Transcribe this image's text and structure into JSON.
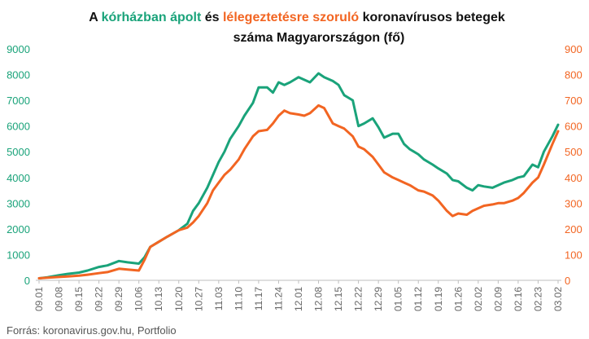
{
  "chart_data": {
    "type": "line",
    "title": {
      "line1": [
        {
          "text": "A ",
          "color": "#111111"
        },
        {
          "text": "kórházban ápolt",
          "color": "#1aa37a"
        },
        {
          "text": " és ",
          "color": "#111111"
        },
        {
          "text": "lélegeztetésre szoruló",
          "color": "#f26522"
        },
        {
          "text": " koronavírusos betegek",
          "color": "#111111"
        }
      ],
      "line2": "száma Magyarországon  (fő)"
    },
    "source": "Forrás: koronavirus.gov.hu, Portfolio",
    "x_tick_labels": [
      "09.01",
      "09.08",
      "09.15",
      "09.22",
      "09.29",
      "10.06",
      "10.13",
      "10.20",
      "10.27",
      "11.03",
      "11.10",
      "11.17",
      "11.24",
      "12.01",
      "12.08",
      "12.15",
      "12.22",
      "12.29",
      "01.05",
      "01.12",
      "01.19",
      "01.26",
      "02.02",
      "02.09",
      "02.16",
      "02.23",
      "03.02"
    ],
    "y_left": {
      "min": 0,
      "max": 9000,
      "ticks": [
        0,
        1000,
        2000,
        3000,
        4000,
        5000,
        6000,
        7000,
        8000,
        9000
      ],
      "color": "#1aa37a"
    },
    "y_right": {
      "min": 0,
      "max": 900,
      "ticks": [
        0,
        100,
        200,
        300,
        400,
        500,
        600,
        700,
        800,
        900
      ],
      "color": "#f26522"
    },
    "grid": false,
    "series": [
      {
        "name": "kórházban ápolt",
        "axis": "left",
        "color": "#1aa37a",
        "points": [
          [
            "09.01",
            80
          ],
          [
            "09.04",
            120
          ],
          [
            "09.08",
            200
          ],
          [
            "09.11",
            250
          ],
          [
            "09.15",
            300
          ],
          [
            "09.18",
            380
          ],
          [
            "09.22",
            520
          ],
          [
            "09.25",
            580
          ],
          [
            "09.29",
            750
          ],
          [
            "10.02",
            700
          ],
          [
            "10.06",
            650
          ],
          [
            "10.08",
            900
          ],
          [
            "10.10",
            1300
          ],
          [
            "10.13",
            1500
          ],
          [
            "10.16",
            1700
          ],
          [
            "10.20",
            1950
          ],
          [
            "10.23",
            2200
          ],
          [
            "10.25",
            2700
          ],
          [
            "10.27",
            3000
          ],
          [
            "10.30",
            3600
          ],
          [
            "11.01",
            4100
          ],
          [
            "11.03",
            4600
          ],
          [
            "11.05",
            5000
          ],
          [
            "11.07",
            5500
          ],
          [
            "11.10",
            6000
          ],
          [
            "11.12",
            6400
          ],
          [
            "11.15",
            6900
          ],
          [
            "11.17",
            7500
          ],
          [
            "11.20",
            7500
          ],
          [
            "11.22",
            7300
          ],
          [
            "11.24",
            7700
          ],
          [
            "11.26",
            7600
          ],
          [
            "11.28",
            7700
          ],
          [
            "12.01",
            7900
          ],
          [
            "12.03",
            7800
          ],
          [
            "12.05",
            7700
          ],
          [
            "12.08",
            8050
          ],
          [
            "12.10",
            7900
          ],
          [
            "12.13",
            7750
          ],
          [
            "12.15",
            7600
          ],
          [
            "12.17",
            7200
          ],
          [
            "12.20",
            7000
          ],
          [
            "12.22",
            6000
          ],
          [
            "12.24",
            6100
          ],
          [
            "12.27",
            6300
          ],
          [
            "12.29",
            5950
          ],
          [
            "12.31",
            5550
          ],
          [
            "01.03",
            5700
          ],
          [
            "01.05",
            5700
          ],
          [
            "01.07",
            5300
          ],
          [
            "01.09",
            5100
          ],
          [
            "01.12",
            4900
          ],
          [
            "01.14",
            4700
          ],
          [
            "01.17",
            4500
          ],
          [
            "01.19",
            4350
          ],
          [
            "01.22",
            4150
          ],
          [
            "01.24",
            3900
          ],
          [
            "01.26",
            3850
          ],
          [
            "01.29",
            3600
          ],
          [
            "01.31",
            3500
          ],
          [
            "02.02",
            3700
          ],
          [
            "02.04",
            3650
          ],
          [
            "02.07",
            3600
          ],
          [
            "02.09",
            3700
          ],
          [
            "02.11",
            3800
          ],
          [
            "02.14",
            3900
          ],
          [
            "02.16",
            4000
          ],
          [
            "02.18",
            4050
          ],
          [
            "02.21",
            4500
          ],
          [
            "02.23",
            4400
          ],
          [
            "02.25",
            5000
          ],
          [
            "02.28",
            5600
          ],
          [
            "03.02",
            6050
          ]
        ]
      },
      {
        "name": "lélegeztetésre szoruló",
        "axis": "right",
        "color": "#f26522",
        "points": [
          [
            "09.01",
            8
          ],
          [
            "09.04",
            10
          ],
          [
            "09.08",
            13
          ],
          [
            "09.11",
            15
          ],
          [
            "09.15",
            18
          ],
          [
            "09.18",
            22
          ],
          [
            "09.22",
            28
          ],
          [
            "09.25",
            32
          ],
          [
            "09.29",
            45
          ],
          [
            "10.02",
            42
          ],
          [
            "10.06",
            38
          ],
          [
            "10.08",
            80
          ],
          [
            "10.10",
            130
          ],
          [
            "10.13",
            150
          ],
          [
            "10.16",
            170
          ],
          [
            "10.20",
            195
          ],
          [
            "10.23",
            205
          ],
          [
            "10.25",
            225
          ],
          [
            "10.27",
            250
          ],
          [
            "10.30",
            300
          ],
          [
            "11.01",
            350
          ],
          [
            "11.03",
            380
          ],
          [
            "11.05",
            410
          ],
          [
            "11.07",
            430
          ],
          [
            "11.10",
            470
          ],
          [
            "11.12",
            510
          ],
          [
            "11.15",
            560
          ],
          [
            "11.17",
            580
          ],
          [
            "11.20",
            585
          ],
          [
            "11.22",
            610
          ],
          [
            "11.24",
            640
          ],
          [
            "11.26",
            660
          ],
          [
            "11.28",
            650
          ],
          [
            "12.01",
            645
          ],
          [
            "12.03",
            640
          ],
          [
            "12.05",
            650
          ],
          [
            "12.08",
            680
          ],
          [
            "12.10",
            670
          ],
          [
            "12.13",
            610
          ],
          [
            "12.15",
            600
          ],
          [
            "12.17",
            590
          ],
          [
            "12.20",
            560
          ],
          [
            "12.22",
            520
          ],
          [
            "12.24",
            510
          ],
          [
            "12.27",
            480
          ],
          [
            "12.29",
            450
          ],
          [
            "12.31",
            420
          ],
          [
            "01.03",
            400
          ],
          [
            "01.05",
            390
          ],
          [
            "01.07",
            380
          ],
          [
            "01.09",
            370
          ],
          [
            "01.12",
            350
          ],
          [
            "01.14",
            345
          ],
          [
            "01.17",
            330
          ],
          [
            "01.19",
            310
          ],
          [
            "01.22",
            270
          ],
          [
            "01.24",
            250
          ],
          [
            "01.26",
            260
          ],
          [
            "01.29",
            255
          ],
          [
            "01.31",
            270
          ],
          [
            "02.02",
            280
          ],
          [
            "02.04",
            290
          ],
          [
            "02.07",
            295
          ],
          [
            "02.09",
            300
          ],
          [
            "02.11",
            300
          ],
          [
            "02.14",
            310
          ],
          [
            "02.16",
            320
          ],
          [
            "02.18",
            340
          ],
          [
            "02.21",
            380
          ],
          [
            "02.23",
            400
          ],
          [
            "02.25",
            450
          ],
          [
            "02.28",
            530
          ],
          [
            "03.02",
            580
          ]
        ]
      }
    ]
  }
}
